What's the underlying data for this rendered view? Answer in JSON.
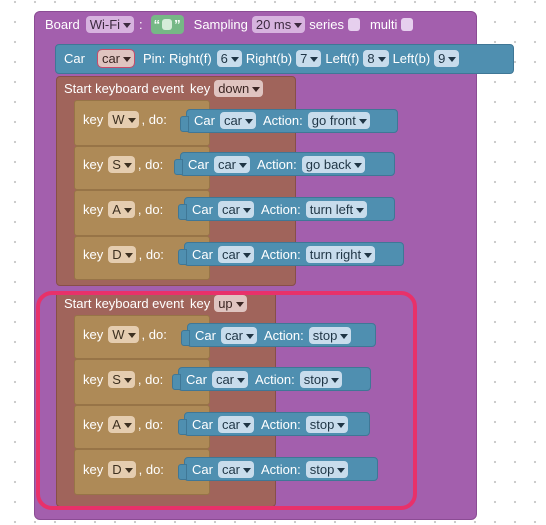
{
  "board": {
    "label": "Board",
    "mode": "Wi-Fi",
    "colon": ":",
    "quote_open": "“",
    "quote_close": "”",
    "sampling_label": "Sampling",
    "sampling_value": "20 ms",
    "series_label": "series",
    "multi_label": "multi"
  },
  "car_init": {
    "label": "Car",
    "name": "car",
    "pin_label": "Pin: Right(f)",
    "right_f": "6",
    "right_b_label": "Right(b)",
    "right_b": "7",
    "left_f_label": "Left(f)",
    "left_f": "8",
    "left_b_label": "Left(b)",
    "left_b": "9"
  },
  "events": [
    {
      "label": "Start keyboard event",
      "key_label": "key",
      "state": "down",
      "handlers": [
        {
          "key_label": "key",
          "key": "W",
          "do_label": ", do:",
          "car_label": "Car",
          "car": "car",
          "action_label": "Action:",
          "action": "go front"
        },
        {
          "key_label": "key",
          "key": "S",
          "do_label": ", do:",
          "car_label": "Car",
          "car": "car",
          "action_label": "Action:",
          "action": "go back"
        },
        {
          "key_label": "key",
          "key": "A",
          "do_label": ", do:",
          "car_label": "Car",
          "car": "car",
          "action_label": "Action:",
          "action": "turn left"
        },
        {
          "key_label": "key",
          "key": "D",
          "do_label": ", do:",
          "car_label": "Car",
          "car": "car",
          "action_label": "Action:",
          "action": "turn right"
        }
      ]
    },
    {
      "label": "Start keyboard event",
      "key_label": "key",
      "state": "up",
      "handlers": [
        {
          "key_label": "key",
          "key": "W",
          "do_label": ", do:",
          "car_label": "Car",
          "car": "car",
          "action_label": "Action:",
          "action": "stop"
        },
        {
          "key_label": "key",
          "key": "S",
          "do_label": ", do:",
          "car_label": "Car",
          "car": "car",
          "action_label": "Action:",
          "action": "stop"
        },
        {
          "key_label": "key",
          "key": "A",
          "do_label": ", do:",
          "car_label": "Car",
          "car": "car",
          "action_label": "Action:",
          "action": "stop"
        },
        {
          "key_label": "key",
          "key": "D",
          "do_label": ", do:",
          "car_label": "Car",
          "car": "car",
          "action_label": "Action:",
          "action": "stop"
        }
      ]
    }
  ],
  "colors": {
    "board": "#a35fad",
    "car": "#4f8fb0",
    "event": "#a0645b",
    "handler": "#ae8a57",
    "highlight": "#e8316a",
    "quote": "#76b886"
  }
}
